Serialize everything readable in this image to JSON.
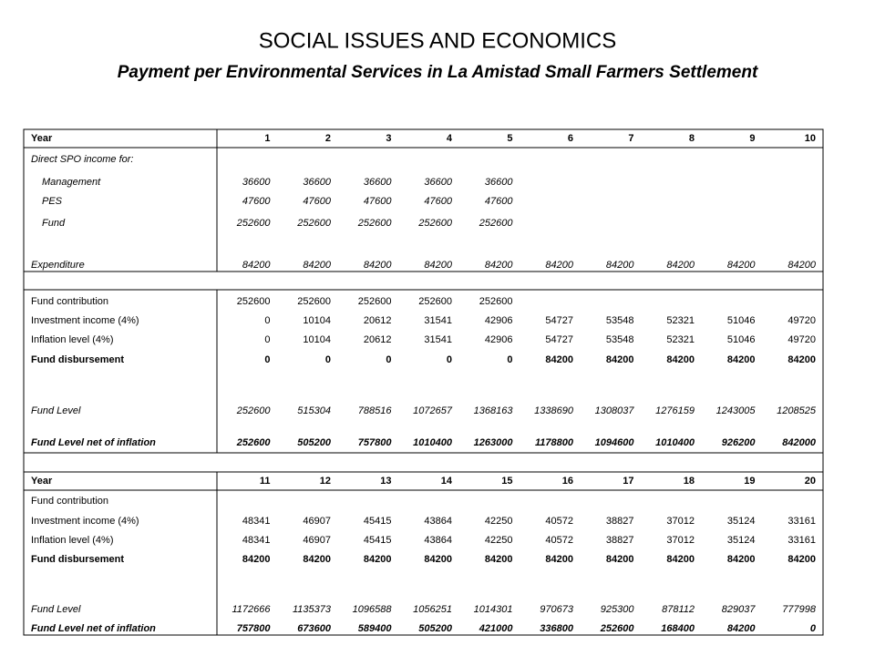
{
  "header": {
    "title": "SOCIAL ISSUES AND ECONOMICS",
    "subtitle": "Payment per Environmental Services in La Amistad Small Farmers Settlement"
  },
  "table": {
    "rows": [
      {
        "label": "Year",
        "values": [
          1,
          2,
          3,
          4,
          5,
          6,
          7,
          8,
          9,
          10
        ]
      },
      {
        "label": "Direct SPO income for:"
      },
      {
        "label": "Management",
        "values": [
          36600,
          36600,
          36600,
          36600,
          36600
        ]
      },
      {
        "label": "PES",
        "values": [
          47600,
          47600,
          47600,
          47600,
          47600
        ]
      },
      {
        "label": "Fund",
        "values": [
          252600,
          252600,
          252600,
          252600,
          252600
        ]
      },
      {
        "label": "Expenditure",
        "values": [
          84200,
          84200,
          84200,
          84200,
          84200,
          84200,
          84200,
          84200,
          84200,
          84200
        ]
      },
      {
        "label": "Fund contribution",
        "values": [
          252600,
          252600,
          252600,
          252600,
          252600
        ]
      },
      {
        "label": "Investment income (4%)",
        "values": [
          0,
          10104,
          20612,
          31541,
          42906,
          54727,
          53548,
          52321,
          51046,
          49720
        ]
      },
      {
        "label": "Inflation level (4%)",
        "values": [
          0,
          10104,
          20612,
          31541,
          42906,
          54727,
          53548,
          52321,
          51046,
          49720
        ]
      },
      {
        "label": "Fund disbursement",
        "values": [
          0,
          0,
          0,
          0,
          0,
          84200,
          84200,
          84200,
          84200,
          84200
        ]
      },
      {
        "label": "Fund Level",
        "values": [
          252600,
          515304,
          788516,
          1072657,
          1368163,
          1338690,
          1308037,
          1276159,
          1243005,
          1208525
        ]
      },
      {
        "label": "Fund Level net of inflation",
        "values": [
          252600,
          505200,
          757800,
          1010400,
          1263000,
          1178800,
          1094600,
          1010400,
          926200,
          842000
        ]
      },
      {
        "label": "Year",
        "values": [
          11,
          12,
          13,
          14,
          15,
          16,
          17,
          18,
          19,
          20
        ]
      },
      {
        "label": "Fund contribution"
      },
      {
        "label": "Investment income (4%)",
        "values": [
          48341,
          46907,
          45415,
          43864,
          42250,
          40572,
          38827,
          37012,
          35124,
          33161
        ]
      },
      {
        "label": "Inflation level (4%)",
        "values": [
          48341,
          46907,
          45415,
          43864,
          42250,
          40572,
          38827,
          37012,
          35124,
          33161
        ]
      },
      {
        "label": "Fund disbursement",
        "values": [
          84200,
          84200,
          84200,
          84200,
          84200,
          84200,
          84200,
          84200,
          84200,
          84200
        ]
      },
      {
        "label": "Fund Level",
        "values": [
          1172666,
          1135373,
          1096588,
          1056251,
          1014301,
          970673,
          925300,
          878112,
          829037,
          777998
        ]
      },
      {
        "label": "Fund Level net of inflation",
        "values": [
          757800,
          673600,
          589400,
          505200,
          421000,
          336800,
          252600,
          168400,
          84200,
          0
        ]
      }
    ]
  }
}
